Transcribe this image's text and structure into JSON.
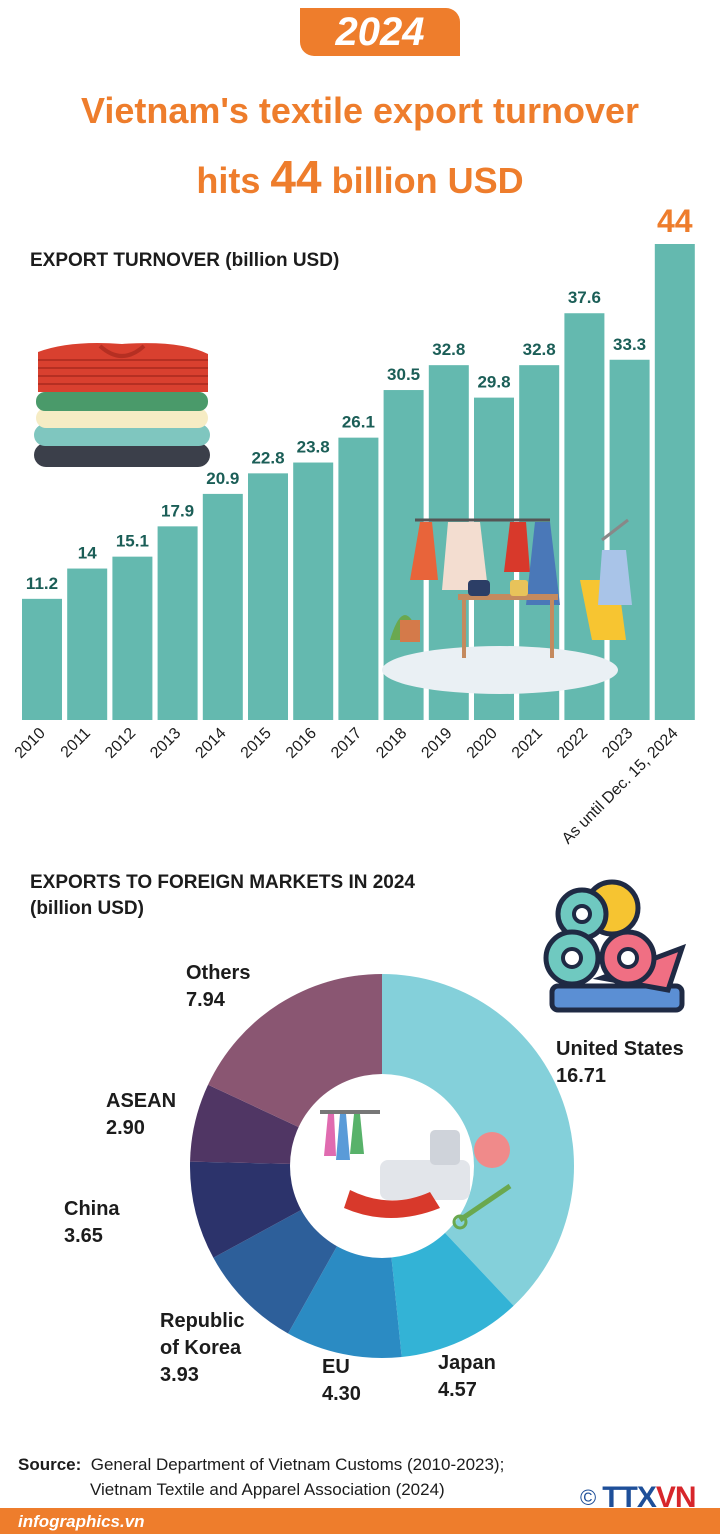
{
  "badge": "2024",
  "title": {
    "line1": "Vietnam's textile export turnover",
    "line2_pre": "hits ",
    "line2_num": "44",
    "line2_post": " billion USD"
  },
  "colors": {
    "orange": "#ee7d2c",
    "bar": "#64b9af",
    "bar_label": "#1b5e57"
  },
  "chart_data": [
    {
      "type": "bar",
      "title": "EXPORT TURNOVER (billion USD)",
      "categories": [
        "2010",
        "2011",
        "2012",
        "2013",
        "2014",
        "2015",
        "2016",
        "2017",
        "2018",
        "2019",
        "2020",
        "2021",
        "2022",
        "2023",
        "As until Dec. 15, 2024"
      ],
      "values": [
        11.2,
        14,
        15.1,
        17.9,
        20.9,
        22.8,
        23.8,
        26.1,
        30.5,
        32.8,
        29.8,
        32.8,
        37.6,
        33.3,
        44
      ],
      "value_labels": [
        "11.2",
        "14",
        "15.1",
        "17.9",
        "20.9",
        "22.8",
        "23.8",
        "26.1",
        "30.5",
        "32.8",
        "29.8",
        "32.8",
        "37.6",
        "33.3",
        "44"
      ],
      "ylim": [
        0,
        44
      ],
      "grid": false
    },
    {
      "type": "pie",
      "title_line1": "EXPORTS TO FOREIGN MARKETS IN 2024",
      "title_line2": "(billion USD)",
      "slices": [
        {
          "name": "United States",
          "value": 16.71,
          "label": "16.71",
          "color": "#84d0da"
        },
        {
          "name": "Japan",
          "value": 4.57,
          "label": "4.57",
          "color": "#33b3d6"
        },
        {
          "name": "EU",
          "value": 4.3,
          "label": "4.30",
          "color": "#2b8bc3"
        },
        {
          "name": "Republic of Korea",
          "value": 3.93,
          "label": "3.93",
          "color": "#2d5f9a"
        },
        {
          "name": "China",
          "value": 3.65,
          "label": "3.65",
          "color": "#2c336b"
        },
        {
          "name": "ASEAN",
          "value": 2.9,
          "label": "2.90",
          "color": "#503664"
        },
        {
          "name": "Others",
          "value": 7.94,
          "label": "7.94",
          "color": "#8a5672"
        }
      ]
    }
  ],
  "market_labels": {
    "us_name": "United States",
    "us_value": "16.71",
    "japan_name": "Japan",
    "japan_value": "4.57",
    "eu_name": "EU",
    "eu_value": "4.30",
    "korea_name1": "Republic",
    "korea_name2": "of Korea",
    "korea_value": "3.93",
    "china_name": "China",
    "china_value": "3.65",
    "asean_name": "ASEAN",
    "asean_value": "2.90",
    "others_name": "Others",
    "others_value": "7.94"
  },
  "source": {
    "label": "Source:",
    "line1": "General Department of Vietnam Customs (2010-2023);",
    "line2": "Vietnam Textile and Apparel Association (2024)"
  },
  "footer": {
    "site": "infographics.vn",
    "copyright": "©",
    "logo_part1": "TTX",
    "logo_part2": "VN"
  },
  "icons": [
    "folded-clothes-icon",
    "clothing-store-icon",
    "fabric-rolls-icon",
    "garment-factory-icon"
  ]
}
